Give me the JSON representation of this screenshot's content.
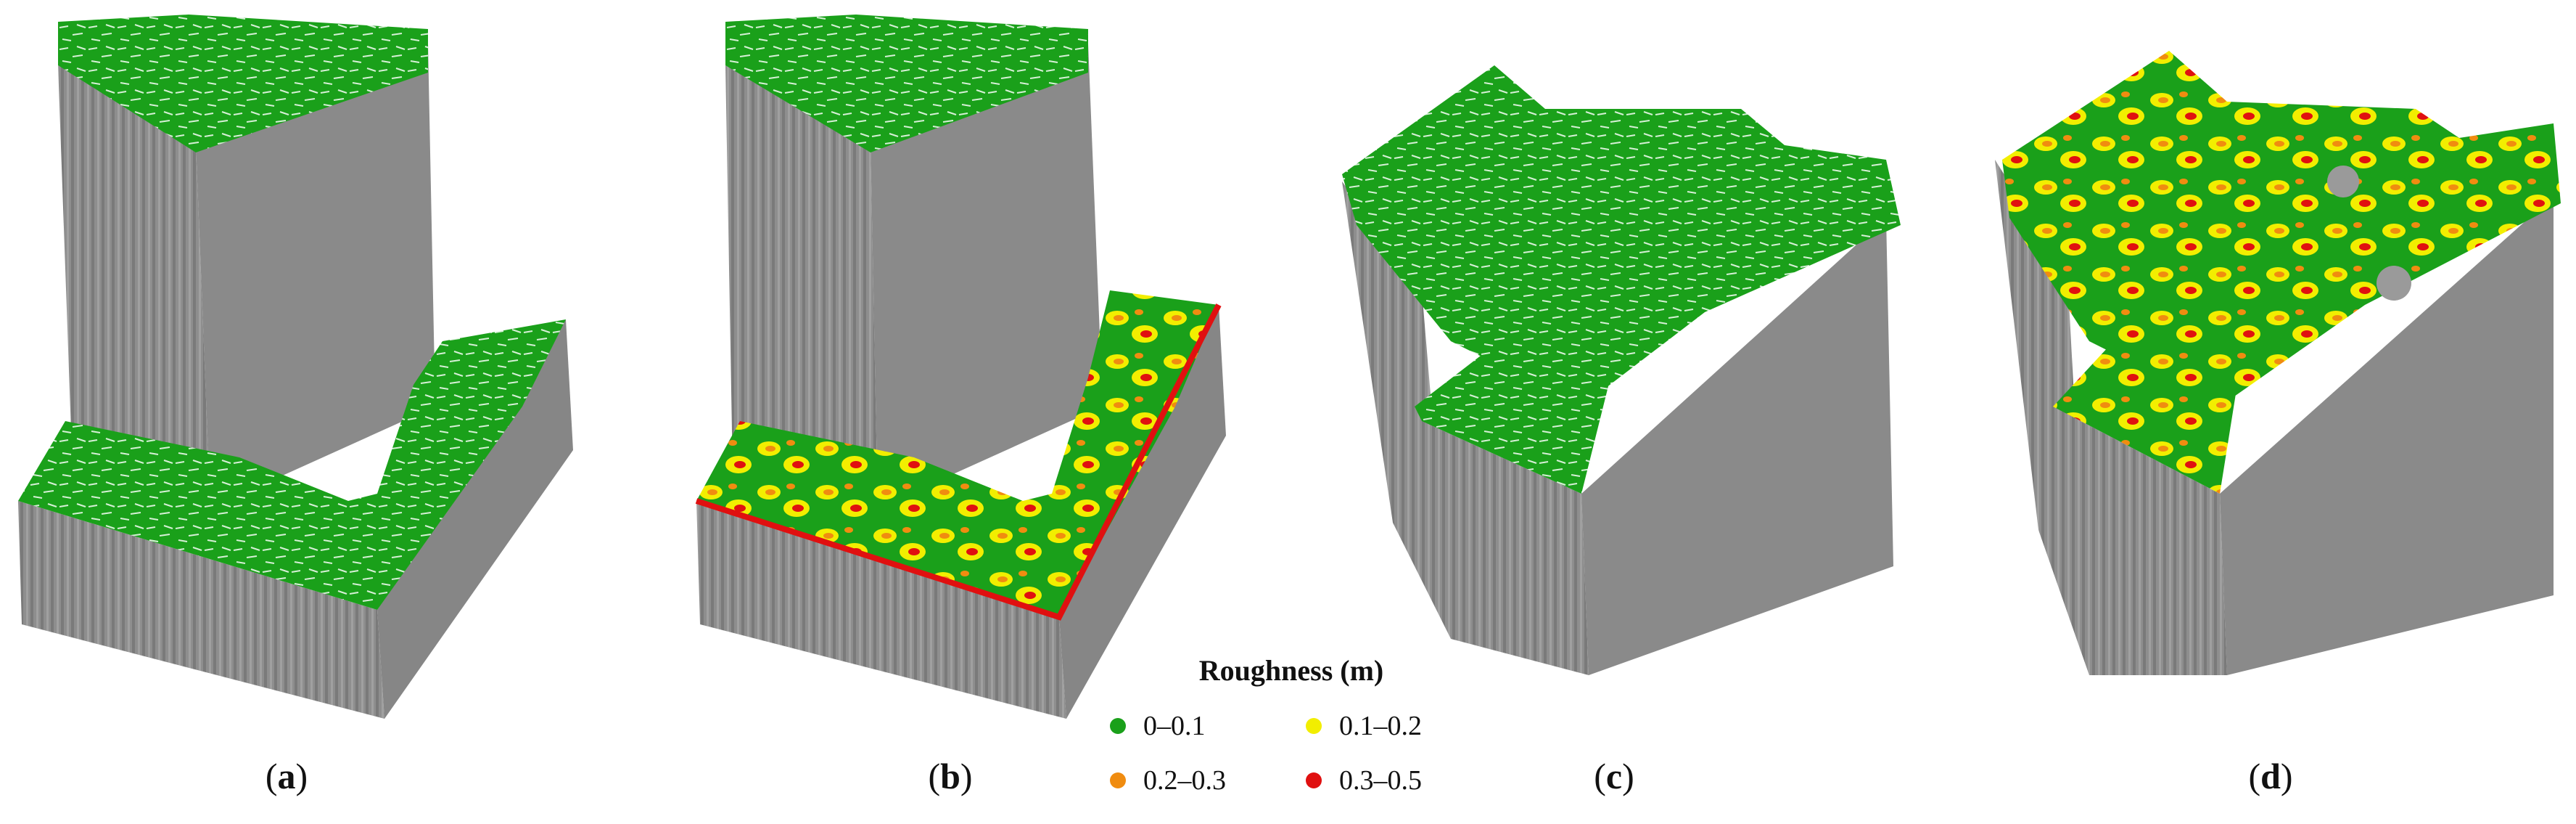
{
  "panels": [
    {
      "id": "a",
      "caption": "a"
    },
    {
      "id": "b",
      "caption": "b"
    },
    {
      "id": "c",
      "caption": "c"
    },
    {
      "id": "d",
      "caption": "d"
    }
  ],
  "legend": {
    "title": "Roughness (m)",
    "items": [
      {
        "label": "0–0.1",
        "color": "#1aa01a"
      },
      {
        "label": "0.1–0.2",
        "color": "#f2ee00"
      },
      {
        "label": "0.2–0.3",
        "color": "#f08c10"
      },
      {
        "label": "0.3–0.5",
        "color": "#e01010"
      }
    ]
  },
  "colors": {
    "wall": "#8c8c8c",
    "wall_dark": "#707070",
    "wall_light": "#a4a4a4",
    "green": "#1aa01a",
    "yellow": "#f2ee00",
    "orange": "#f08c10",
    "red": "#e01010"
  }
}
